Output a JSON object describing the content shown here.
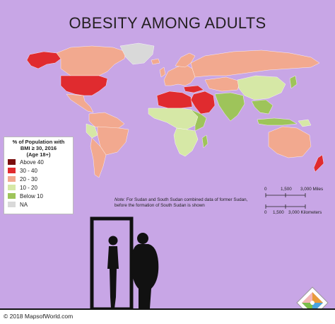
{
  "title": "OBESITY AMONG ADULTS",
  "legend": {
    "title_line1": "% of Population with",
    "title_line2": "BMI ≥ 30, 2016",
    "title_line3": "(Age 18+)",
    "items": [
      {
        "label": "Above 40",
        "color": "#7a0d0d"
      },
      {
        "label": "30 - 40",
        "color": "#e02b2f"
      },
      {
        "label": "20 - 30",
        "color": "#f2a98f"
      },
      {
        "label": "10 - 20",
        "color": "#d6e8a6"
      },
      {
        "label": "Below 10",
        "color": "#9ec45a"
      },
      {
        "label": "NA",
        "color": "#d9d9d9"
      }
    ]
  },
  "note": {
    "prefix": "Note:",
    "text": "For Sudan and South Sudan combined data of former Sudan, before the formation of South Sudan is shown"
  },
  "scale": {
    "miles_zero": "0",
    "miles_mid": "1,500",
    "miles_end": "3,000 Miles",
    "km_zero": "0",
    "km_mid": "1,500",
    "km_end": "3,000 Kilometers"
  },
  "footer": {
    "copyright": "© 2018 MapsofWorld.com"
  },
  "colors": {
    "background": "#c8a6e6",
    "above_40": "#7a0d0d",
    "range_30_40": "#e02b2f",
    "range_20_30": "#f2a98f",
    "range_10_20": "#d6e8a6",
    "below_10": "#9ec45a",
    "na": "#d9d9d9"
  }
}
